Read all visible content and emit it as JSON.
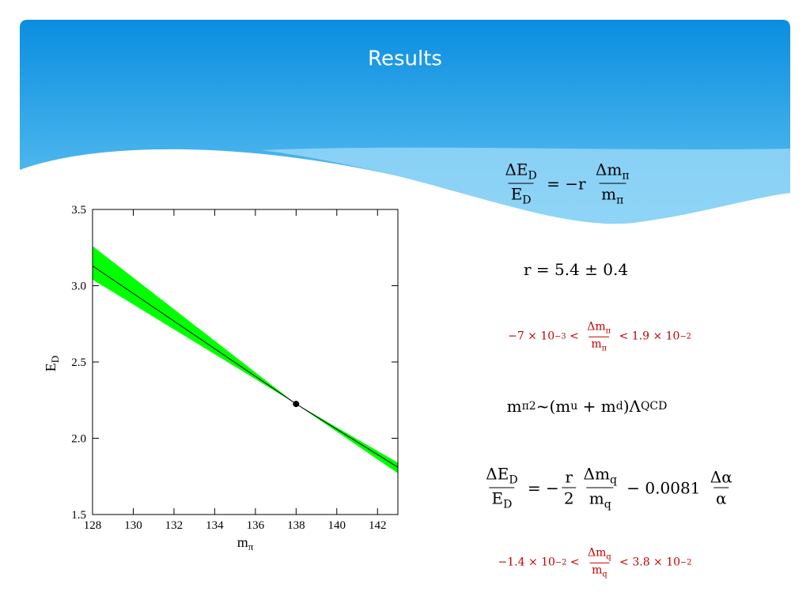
{
  "title": "Results",
  "chart_data": {
    "type": "line",
    "xlabel": {
      "t": "m",
      "sub": "π"
    },
    "ylabel": {
      "t": "E",
      "sub": "D"
    },
    "xlim": [
      128,
      143
    ],
    "xticks": [
      128,
      130,
      132,
      134,
      136,
      138,
      140,
      142
    ],
    "ylim": [
      1.5,
      3.5
    ],
    "yticks": [
      1.5,
      {
        "value": 2,
        "label": "2.0"
      },
      2.5,
      {
        "value": 3,
        "label": "3.0"
      },
      3.5
    ],
    "band": {
      "x": [
        128,
        138,
        143
      ],
      "upper": [
        3.26,
        2.225,
        1.84
      ],
      "lower": [
        3.04,
        2.225,
        1.77
      ],
      "color": "#00ff00"
    },
    "series": [
      {
        "x": [
          128,
          138,
          143
        ],
        "values": [
          3.13,
          2.225,
          1.81
        ],
        "color": "#000000"
      }
    ],
    "points": [
      {
        "x": 138,
        "y": 2.225,
        "color": "#000000"
      }
    ]
  },
  "equations": [
    {
      "color": "#000000",
      "size": 20,
      "items": [
        {
          "num": [
            {
              "t": "ΔE"
            },
            {
              "sub": "D"
            }
          ],
          "den": [
            {
              "t": "E"
            },
            {
              "sub": "D"
            }
          ]
        },
        {
          "t": " = −r "
        },
        {
          "num": [
            {
              "t": "Δm"
            },
            {
              "sub": "π"
            }
          ],
          "den": [
            {
              "t": "m"
            },
            {
              "sub": "π"
            }
          ]
        }
      ]
    },
    {
      "color": "#000000",
      "size": 20,
      "items": [
        {
          "t": "r = 5.4 ± 0.4"
        }
      ]
    },
    {
      "color": "#c00000",
      "size": 14,
      "items": [
        {
          "t": "−7 × 10"
        },
        {
          "sup": "−3"
        },
        {
          "t": " < "
        },
        {
          "num": [
            {
              "t": "Δm"
            },
            {
              "sub": "π"
            }
          ],
          "den": [
            {
              "t": "m"
            },
            {
              "sub": "π"
            }
          ]
        },
        {
          "t": " < 1.9 × 10"
        },
        {
          "sup": "−2"
        }
      ]
    },
    {
      "color": "#000000",
      "size": 20,
      "items": [
        {
          "t": "m"
        },
        {
          "sub": "π"
        },
        {
          "sup": "2"
        },
        {
          "t": "~(m"
        },
        {
          "sub": "u"
        },
        {
          "t": " + m"
        },
        {
          "sub": "d"
        },
        {
          "t": ")Λ"
        },
        {
          "sub": "QCD"
        }
      ]
    },
    {
      "color": "#000000",
      "size": 20,
      "items": [
        {
          "num": [
            {
              "t": "ΔE"
            },
            {
              "sub": "D"
            }
          ],
          "den": [
            {
              "t": "E"
            },
            {
              "sub": "D"
            }
          ]
        },
        {
          "t": " = −"
        },
        {
          "num": [
            {
              "t": "r"
            }
          ],
          "den": [
            {
              "t": "2"
            }
          ]
        },
        {
          "num": [
            {
              "t": "Δm"
            },
            {
              "sub": "q"
            }
          ],
          "den": [
            {
              "t": "m"
            },
            {
              "sub": "q"
            }
          ]
        },
        {
          "t": " − 0.0081 "
        },
        {
          "num": [
            {
              "t": "Δα"
            }
          ],
          "den": [
            {
              "t": "α"
            }
          ]
        }
      ]
    },
    {
      "color": "#c00000",
      "size": 14,
      "items": [
        {
          "t": "−1.4 × 10"
        },
        {
          "sup": "−2"
        },
        {
          "t": " < "
        },
        {
          "num": [
            {
              "t": "Δm"
            },
            {
              "sub": "q"
            }
          ],
          "den": [
            {
              "t": "m"
            },
            {
              "sub": "q"
            }
          ]
        },
        {
          "t": " < 3.8 × 10"
        },
        {
          "sup": "−2"
        }
      ]
    }
  ]
}
